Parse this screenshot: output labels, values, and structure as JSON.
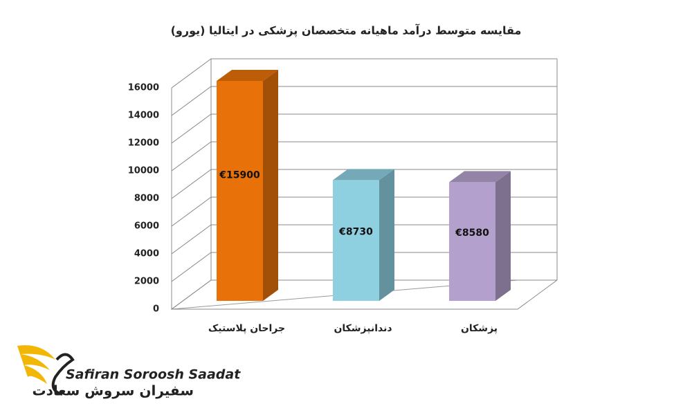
{
  "chart_data": {
    "type": "bar3d",
    "title": "مقایسه متوسط درآمد ماهیانه متخصصان پزشکی در ایتالیا (یورو)",
    "categories": [
      "جراحان پلاستیک",
      "دندانپزشکان",
      "پزشکان"
    ],
    "values": [
      15900,
      8730,
      8580
    ],
    "value_labels": [
      "€15900",
      "€8730",
      "€8580"
    ],
    "colors": [
      "#e8710a",
      "#8ecfe0",
      "#b3a0cc"
    ],
    "ylim": [
      0,
      16000
    ],
    "yticks": [
      0,
      2000,
      4000,
      6000,
      8000,
      10000,
      12000,
      14000,
      16000
    ],
    "grid": true
  },
  "logo": {
    "name_en": "Safiran Soroosh Saadat",
    "name_fa": "سفیران سروش سعادت"
  }
}
